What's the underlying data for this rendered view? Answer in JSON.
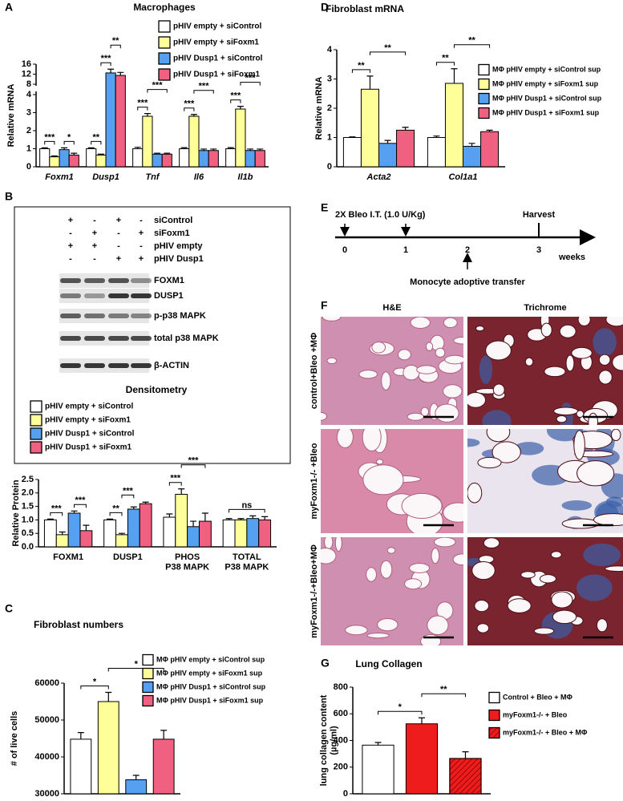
{
  "panel_labels": [
    "A",
    "B",
    "C",
    "D",
    "E",
    "F",
    "G"
  ],
  "blot": {
    "conditions": [
      {
        "label": "siControl",
        "signs": [
          "+",
          "-",
          "+",
          "-"
        ]
      },
      {
        "label": "siFoxm1",
        "signs": [
          "-",
          "+",
          "-",
          "+"
        ]
      },
      {
        "label": "pHIV empty",
        "signs": [
          "+",
          "+",
          "-",
          "-"
        ]
      },
      {
        "label": "pHIV Dusp1",
        "signs": [
          "-",
          "-",
          "+",
          "+"
        ]
      }
    ],
    "bands": [
      "FOXM1",
      "DUSP1",
      "p-p38 MAPK",
      "total p38 MAPK",
      "β-ACTIN"
    ]
  },
  "timeline": {
    "treatment": "2X Bleo I.T. (1.0 U/Kg)",
    "ticks": [
      "0",
      "1",
      "2",
      "3"
    ],
    "harvest": "Harvest",
    "unit": "weeks",
    "transfer": "Monocyte adoptive transfer"
  },
  "histology": {
    "columns": [
      "H&E",
      "Trichrome"
    ],
    "rows": [
      "control+Bleo +MΦ",
      "myFoxm1-/- +Bleo",
      "myFoxm1-/-+Bleo+MΦ"
    ]
  },
  "chart_data": [
    {
      "type": "bar",
      "title": "Macrophages",
      "y_label": "Relative mRNA",
      "categories": [
        "Foxm1",
        "Dusp1",
        "Tnf",
        "Il6",
        "Il1b"
      ],
      "series": [
        {
          "name": "pHIV empty + siControl",
          "color": "#ffffff",
          "values": [
            1.0,
            1.0,
            1.0,
            1.0,
            1.0
          ],
          "errors": [
            0.05,
            0.05,
            0.08,
            0.06,
            0.06
          ]
        },
        {
          "name": "pHIV empty + siFoxm1",
          "color": "#ffff99",
          "values": [
            0.55,
            0.65,
            2.8,
            2.8,
            3.2
          ],
          "errors": [
            0.05,
            0.05,
            0.15,
            0.1,
            0.15
          ]
        },
        {
          "name": "pHIV Dusp1 + siControl",
          "color": "#55a0f0",
          "values": [
            0.95,
            12.5,
            0.7,
            0.9,
            0.9
          ],
          "errors": [
            0.1,
            1.5,
            0.05,
            0.08,
            0.08
          ]
        },
        {
          "name": "pHIV Dusp1 + siFoxm1",
          "color": "#f06080",
          "values": [
            0.65,
            11.5,
            0.7,
            0.9,
            0.9
          ],
          "errors": [
            0.1,
            1.2,
            0.05,
            0.08,
            0.08
          ]
        }
      ],
      "ylim": [
        0,
        16
      ],
      "ybreak": [
        4,
        8
      ],
      "yticks": [
        0,
        1,
        2,
        3,
        4,
        8,
        12,
        16
      ],
      "annotations": [
        {
          "text": "***",
          "category": 0,
          "series": [
            0,
            1
          ]
        },
        {
          "text": "*",
          "category": 0,
          "series": [
            2,
            3
          ]
        },
        {
          "text": "**",
          "category": 1,
          "series": [
            0,
            1
          ]
        },
        {
          "text": "***",
          "category": 1,
          "series": [
            1,
            2
          ]
        },
        {
          "text": "**",
          "category": 1,
          "series": [
            2,
            3
          ]
        },
        {
          "text": "***",
          "category": 2,
          "series": [
            0,
            1
          ]
        },
        {
          "text": "***",
          "category": 2,
          "series": [
            1,
            3
          ]
        },
        {
          "text": "***",
          "category": 3,
          "series": [
            0,
            1
          ]
        },
        {
          "text": "***",
          "category": 3,
          "series": [
            1,
            3
          ]
        },
        {
          "text": "***",
          "category": 4,
          "series": [
            0,
            1
          ]
        },
        {
          "text": "***",
          "category": 4,
          "series": [
            1,
            3
          ]
        }
      ]
    },
    {
      "type": "bar",
      "title": "Densitometry",
      "y_label": "Relative Protein",
      "categories": [
        "FOXM1",
        "DUSP1",
        "PHOS\nP38 MAPK",
        "TOTAL\nP38 MAPK"
      ],
      "series": [
        {
          "name": "pHIV empty + siControl",
          "color": "#ffffff",
          "values": [
            1.0,
            1.0,
            1.1,
            1.0
          ],
          "errors": [
            0.03,
            0.03,
            0.12,
            0.05
          ]
        },
        {
          "name": "pHIV empty + siFoxm1",
          "color": "#ffff99",
          "values": [
            0.45,
            0.45,
            1.95,
            1.0
          ],
          "errors": [
            0.1,
            0.05,
            0.2,
            0.05
          ]
        },
        {
          "name": "pHIV Dusp1 + siControl",
          "color": "#55a0f0",
          "values": [
            1.25,
            1.4,
            0.75,
            1.05
          ],
          "errors": [
            0.08,
            0.08,
            0.2,
            0.1
          ]
        },
        {
          "name": "pHIV Dusp1 + siFoxm1",
          "color": "#f06080",
          "values": [
            0.6,
            1.6,
            0.95,
            1.0
          ],
          "errors": [
            0.2,
            0.06,
            0.3,
            0.12
          ]
        }
      ],
      "ylim": [
        0,
        2.5
      ],
      "yticks": [
        {
          "value": 0,
          "label": "0.0"
        },
        0.5,
        {
          "value": 1,
          "label": "1.0"
        },
        1.5,
        {
          "value": 2,
          "label": "2.0"
        },
        2.5
      ],
      "annotations": [
        {
          "text": "***",
          "category": 0,
          "series": [
            0,
            1
          ]
        },
        {
          "text": "***",
          "category": 0,
          "series": [
            2,
            3
          ]
        },
        {
          "text": "**",
          "category": 1,
          "series": [
            0,
            1
          ]
        },
        {
          "text": "***",
          "category": 1,
          "series": [
            1,
            2
          ]
        },
        {
          "text": "***",
          "category": 2,
          "series": [
            0,
            1
          ]
        },
        {
          "text": "***",
          "category": 2,
          "series": [
            1,
            3
          ]
        },
        {
          "text": "ns",
          "category": 3,
          "series": [
            0,
            3
          ]
        }
      ]
    },
    {
      "type": "bar",
      "title": "Fibroblast numbers",
      "y_label": "# of live cells",
      "categories": [
        null
      ],
      "series": [
        {
          "name": "MΦ pHIV empty + siControl sup",
          "color": "#ffffff",
          "values": [
            44800
          ],
          "errors": [
            1800
          ]
        },
        {
          "name": "MΦ pHIV empty + siFoxm1 sup",
          "color": "#ffff99",
          "values": [
            55000
          ],
          "errors": [
            2500
          ]
        },
        {
          "name": "MΦ pHIV Dusp1 + siControl sup",
          "color": "#55a0f0",
          "values": [
            33800
          ],
          "errors": [
            1200
          ]
        },
        {
          "name": "MΦ pHIV Dusp1 + siFoxm1 sup",
          "color": "#f06080",
          "values": [
            44800
          ],
          "errors": [
            2400
          ]
        }
      ],
      "ylim": [
        30000,
        60000
      ],
      "yticks": [
        30000,
        40000,
        50000,
        60000
      ],
      "annotations": [
        {
          "text": "*",
          "category": 0,
          "series": [
            0,
            1
          ]
        },
        {
          "text": "*",
          "category": 0,
          "series": [
            1,
            3
          ]
        }
      ]
    },
    {
      "type": "bar",
      "title": "Fibroblast mRNA",
      "y_label": "Relative mRNA",
      "categories": [
        "Acta2",
        "Col1a1"
      ],
      "series": [
        {
          "name": "MΦ pHIV empty + siControl sup",
          "color": "#ffffff",
          "values": [
            1.0,
            1.0
          ],
          "errors": [
            0.02,
            0.05
          ]
        },
        {
          "name": "MΦ pHIV empty + siFoxm1 sup",
          "color": "#ffff99",
          "values": [
            2.65,
            2.85
          ],
          "errors": [
            0.45,
            0.5
          ]
        },
        {
          "name": "MΦ pHIV Dusp1 + siControl sup",
          "color": "#55a0f0",
          "values": [
            0.8,
            0.7
          ],
          "errors": [
            0.1,
            0.1
          ]
        },
        {
          "name": "MΦ pHIV Dusp1 + siFoxm1 sup",
          "color": "#f06080",
          "values": [
            1.25,
            1.2
          ],
          "errors": [
            0.1,
            0.05
          ]
        }
      ],
      "ylim": [
        0,
        4
      ],
      "yticks": [
        0,
        1,
        2,
        3,
        4
      ],
      "annotations": [
        {
          "text": "**",
          "category": 0,
          "series": [
            0,
            1
          ]
        },
        {
          "text": "**",
          "category": 0,
          "series": [
            1,
            3
          ]
        },
        {
          "text": "**",
          "category": 1,
          "series": [
            0,
            1
          ]
        },
        {
          "text": "**",
          "category": 1,
          "series": [
            1,
            3
          ]
        }
      ]
    },
    {
      "type": "bar",
      "title": "Lung Collagen",
      "y_label": "lung collagen content\n(µg/ml)",
      "categories": [
        null
      ],
      "series": [
        {
          "name": "Control + Bleo + MΦ",
          "color": "#ffffff",
          "values": [
            365
          ],
          "errors": [
            20
          ]
        },
        {
          "name": "myFoxm1-/- + Bleo",
          "color": "#ee1c1c",
          "values": [
            525
          ],
          "errors": [
            45
          ]
        },
        {
          "name": "myFoxm1-/- + Bleo + MΦ",
          "color": "#ee1c1c",
          "hatch": true,
          "values": [
            265
          ],
          "errors": [
            50
          ]
        }
      ],
      "ylim": [
        0,
        800
      ],
      "yticks": [
        0,
        200,
        400,
        600,
        800
      ],
      "annotations": [
        {
          "text": "*",
          "category": 0,
          "series": [
            0,
            1
          ]
        },
        {
          "text": "**",
          "category": 0,
          "series": [
            1,
            2
          ]
        }
      ]
    }
  ]
}
